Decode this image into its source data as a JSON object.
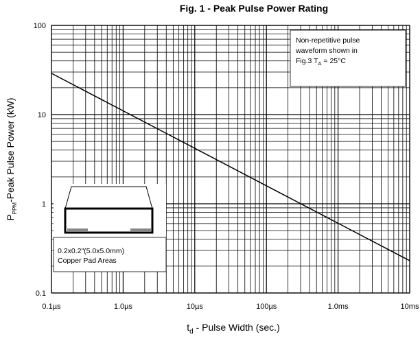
{
  "chart_data": {
    "type": "line",
    "title": "Fig. 1 - Peak Pulse Power Rating",
    "x_label": {
      "main": "t",
      "sub": "d",
      "rest": " - Pulse Width (sec.)"
    },
    "y_label": {
      "main": "P",
      "sub": "PPM",
      "rest": "-Peak Pulse Power (kW)"
    },
    "x": [
      1e-07,
      0.01
    ],
    "series": [
      {
        "color": "#000000",
        "values": [
          29,
          0.23
        ]
      }
    ],
    "log_x": true,
    "log_y": true,
    "grid": true,
    "minor_grid": true,
    "xlim": [
      1e-07,
      0.01
    ],
    "ylim": [
      0.1,
      100
    ],
    "xticks": [
      {
        "value": 1e-07,
        "label": "0.1µs"
      },
      {
        "value": 1e-06,
        "label": "1.0µs"
      },
      {
        "value": 1e-05,
        "label": "10µs"
      },
      {
        "value": 0.0001,
        "label": "100µs"
      },
      {
        "value": 0.001,
        "label": "1.0ms"
      },
      {
        "value": 0.01,
        "label": "10ms"
      }
    ],
    "yticks": [
      0.1,
      1,
      10,
      100
    ],
    "annotation": {
      "line1": "Non-repetitive pulse",
      "line2": "waveform shown in",
      "line3": "Fig.3 T",
      "sub": "A",
      "rest": " = 25°C"
    },
    "inset": {
      "line1": "0.2x0.2\"(5.0x5.0mm)",
      "line2": "Copper Pad Areas"
    }
  }
}
